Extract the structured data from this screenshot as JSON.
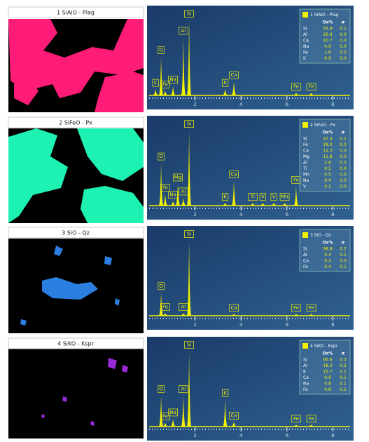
{
  "chart_data": [
    {
      "type": "spectrum",
      "title": "1 SiAlO - Plag",
      "xlim": [
        0,
        8.75
      ],
      "ylim": [
        0,
        112
      ],
      "xticks": [
        2,
        4,
        6,
        8
      ],
      "x": [
        0.28,
        0.52,
        0.7,
        1.04,
        1.49,
        1.74,
        3.31,
        3.69,
        6.4,
        7.06
      ],
      "peak_labels": [
        "C",
        "O",
        "Fe",
        "Na",
        "Al",
        "Si",
        "K",
        "Ca",
        "Fe",
        "Fe"
      ],
      "series": [
        {
          "name": "1 SiAlO - Plag",
          "color": "#f2f200",
          "values": [
            8,
            50,
            6,
            12,
            75,
            97,
            8,
            18,
            3,
            3
          ]
        }
      ],
      "table": {
        "columns": [
          "Ox%",
          "σ"
        ],
        "rows": [
          [
            "Si",
            "55.9",
            "0.1"
          ],
          [
            "Al",
            "26.4",
            "0.0"
          ],
          [
            "Ca",
            "10.7",
            "0.0"
          ],
          [
            "Na",
            "4.9",
            "0.0"
          ],
          [
            "Fe",
            "1.6",
            "0.0"
          ],
          [
            "K",
            "0.6",
            "0.0"
          ]
        ]
      }
    },
    {
      "type": "spectrum",
      "title": "2 SiFeO - Px",
      "xlim": [
        0,
        8.75
      ],
      "ylim": [
        0,
        112
      ],
      "xticks": [
        2,
        4,
        6,
        8
      ],
      "x": [
        0.52,
        0.7,
        1.04,
        1.25,
        1.49,
        1.74,
        3.31,
        3.69,
        4.51,
        4.95,
        5.43,
        5.9,
        6.4
      ],
      "peak_labels": [
        "O",
        "Fe",
        "Na",
        "Mg",
        "Al",
        "Si",
        "K",
        "Ca",
        "Ti",
        "V",
        "V",
        "Mn",
        "Fe"
      ],
      "series": [
        {
          "name": "2 SiFeO - Px",
          "color": "#f2f200",
          "values": [
            55,
            15,
            6,
            28,
            10,
            97,
            3,
            32,
            3,
            3,
            3,
            3,
            25
          ]
        }
      ],
      "table": {
        "columns": [
          "Ox%",
          "σ"
        ],
        "rows": [
          [
            "Si",
            "47.4",
            "0.1"
          ],
          [
            "Fe",
            "28.0",
            "0.0"
          ],
          [
            "Ca",
            "12.3",
            "0.0"
          ],
          [
            "Mg",
            "11.8",
            "0.0"
          ],
          [
            "Al",
            "2.8",
            "0.0"
          ],
          [
            "Ti",
            "0.5",
            "0.0"
          ],
          [
            "Mn",
            "0.5",
            "0.0"
          ],
          [
            "Na",
            "0.4",
            "0.0"
          ],
          [
            "V",
            "0.1",
            "0.0"
          ]
        ]
      }
    },
    {
      "type": "spectrum",
      "title": "3 SiO - Qz",
      "xlim": [
        0,
        8.75
      ],
      "ylim": [
        0,
        112
      ],
      "xticks": [
        2,
        4,
        6,
        8
      ],
      "x": [
        0.52,
        0.7,
        1.49,
        1.74,
        3.69,
        6.4,
        7.06
      ],
      "peak_labels": [
        "O",
        "Fe",
        "Al",
        "Si",
        "Ca",
        "Fe",
        "Fe"
      ],
      "series": [
        {
          "name": "3 SiO - Qz",
          "color": "#f2f200",
          "values": [
            30,
            3,
            3,
            97,
            2,
            2,
            2
          ]
        }
      ],
      "table": {
        "columns": [
          "Ox%",
          "σ"
        ],
        "rows": [
          [
            "Si",
            "98.8",
            "0.2"
          ],
          [
            "Al",
            "0.4",
            "0.1"
          ],
          [
            "Ca",
            "0.4",
            "0.0"
          ],
          [
            "Fe",
            "0.4",
            "0.1"
          ]
        ]
      }
    },
    {
      "type": "spectrum",
      "title": "4 SiKO - Kspr",
      "xlim": [
        0,
        8.75
      ],
      "ylim": [
        0,
        112
      ],
      "xticks": [
        2,
        4,
        6,
        8
      ],
      "x": [
        0.52,
        0.7,
        1.04,
        1.49,
        1.74,
        3.31,
        3.69,
        6.4,
        7.06
      ],
      "peak_labels": [
        "O",
        "Fe",
        "Na",
        "Al",
        "Si",
        "K",
        "Ca",
        "Fe",
        "Fe"
      ],
      "series": [
        {
          "name": "4 SiKO - Kspr",
          "color": "#f2f200",
          "values": [
            40,
            5,
            10,
            40,
            97,
            35,
            6,
            2,
            2
          ]
        }
      ],
      "table": {
        "columns": [
          "Ox%",
          "σ"
        ],
        "rows": [
          [
            "Si",
            "65.6",
            "0.3"
          ],
          [
            "Al",
            "18.2",
            "0.2"
          ],
          [
            "K",
            "15.7",
            "0.1"
          ],
          [
            "Ca",
            "0.9",
            "0.1"
          ],
          [
            "Na",
            "0.8",
            "0.1"
          ],
          [
            "Fe",
            "0.8",
            "0.1"
          ]
        ]
      }
    }
  ]
}
